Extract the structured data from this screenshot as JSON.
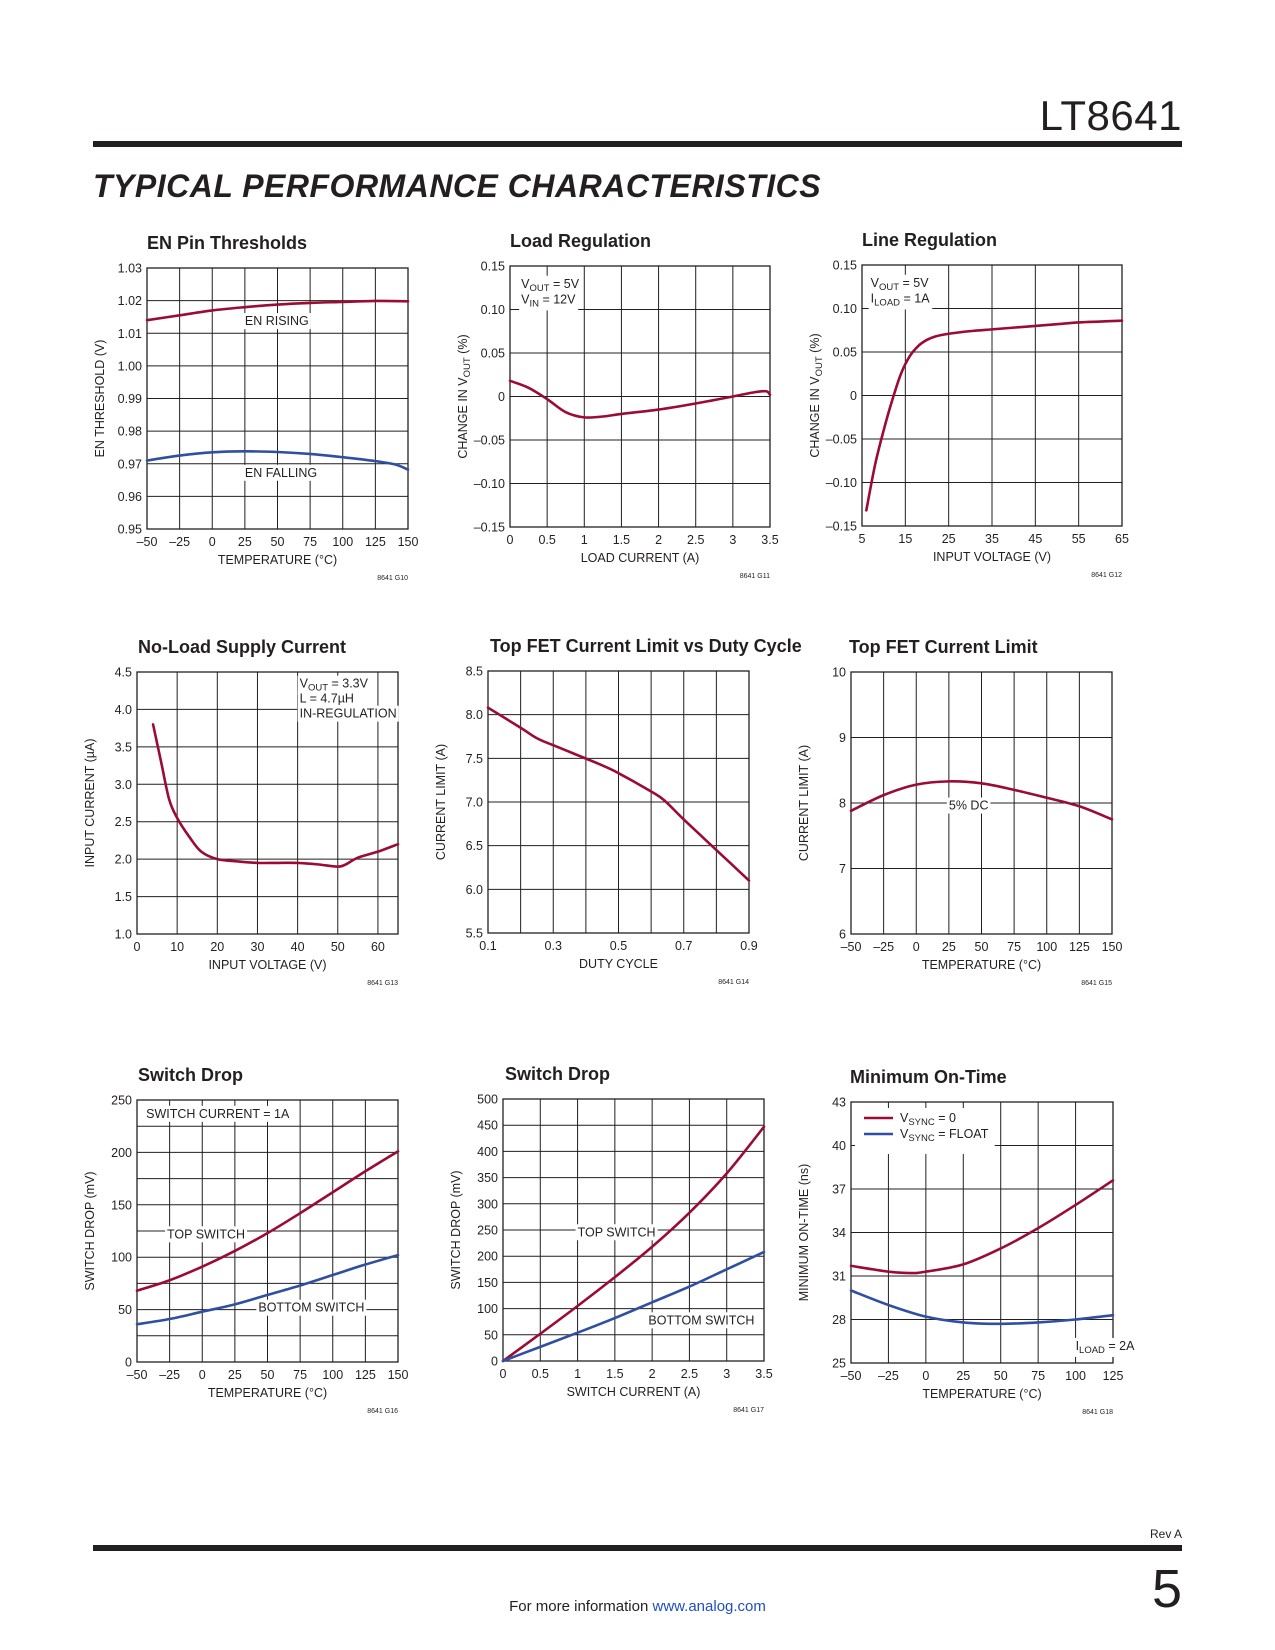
{
  "header": {
    "part_number": "LT8641",
    "section_title": "TYPICAL PERFORMANCE CHARACTERISTICS"
  },
  "colors": {
    "red": "#9b0c35",
    "blue": "#2f4fa2",
    "grid": "#231f20"
  },
  "chart_data": [
    {
      "type": "line",
      "title": "EN Pin Thresholds",
      "xlabel": "TEMPERATURE (°C)",
      "ylabel": "EN THRESHOLD (V)",
      "xlim": [
        -50,
        150
      ],
      "ylim": [
        0.95,
        1.03
      ],
      "xticks": [
        -50,
        -25,
        0,
        25,
        50,
        75,
        100,
        125,
        150
      ],
      "xtick_labels": [
        "–50",
        "–25",
        "0",
        "25",
        "50",
        "75",
        "100",
        "125",
        "150"
      ],
      "yticks": [
        0.95,
        0.96,
        0.97,
        0.98,
        0.99,
        1.0,
        1.01,
        1.02,
        1.03
      ],
      "ytick_labels": [
        "0.95",
        "0.96",
        "0.97",
        "0.98",
        "0.99",
        "1.00",
        "1.01",
        "1.02",
        "1.03"
      ],
      "grid": true,
      "code": "8641 G10",
      "series": [
        {
          "color": "red",
          "x": [
            -50,
            -25,
            0,
            25,
            50,
            75,
            100,
            125,
            150
          ],
          "y": [
            1.014,
            1.0155,
            1.017,
            1.018,
            1.0188,
            1.0193,
            1.0196,
            1.0199,
            1.0198
          ]
        },
        {
          "color": "blue",
          "x": [
            -50,
            -25,
            0,
            25,
            50,
            75,
            100,
            125,
            140,
            150
          ],
          "y": [
            0.971,
            0.9725,
            0.9735,
            0.9738,
            0.9736,
            0.973,
            0.972,
            0.9708,
            0.9698,
            0.9682
          ]
        }
      ],
      "annotations": [
        {
          "text": "EN RISING",
          "x": 25,
          "y": 1.0125
        },
        {
          "text": "EN FALLING",
          "x": 25,
          "y": 0.966
        }
      ]
    },
    {
      "type": "line",
      "title": "Load Regulation",
      "xlabel": "LOAD CURRENT (A)",
      "ylabel": "CHANGE IN VOUT (%)",
      "xlim": [
        0,
        3.5
      ],
      "ylim": [
        -0.15,
        0.15
      ],
      "xticks": [
        0,
        0.5,
        1,
        1.5,
        2,
        2.5,
        3,
        3.5
      ],
      "xtick_labels": [
        "0",
        "0.5",
        "1",
        "1.5",
        "2",
        "2.5",
        "3",
        "3.5"
      ],
      "yticks": [
        -0.15,
        -0.1,
        -0.05,
        0,
        0.05,
        0.1,
        0.15
      ],
      "ytick_labels": [
        "–0.15",
        "–0.10",
        "–0.05",
        "0",
        "0.05",
        "0.10",
        "0.15"
      ],
      "grid": true,
      "code": "8641 G11",
      "series": [
        {
          "color": "red",
          "x": [
            0,
            0.25,
            0.5,
            0.75,
            1.0,
            1.25,
            1.5,
            2.0,
            2.5,
            3.0,
            3.3,
            3.45,
            3.5
          ],
          "y": [
            0.018,
            0.01,
            -0.003,
            -0.018,
            -0.024,
            -0.023,
            -0.02,
            -0.015,
            -0.008,
            0.0,
            0.005,
            0.006,
            0.002
          ]
        }
      ],
      "annotations": [
        {
          "text": "VOUT = 5V",
          "x": 0.15,
          "y": 0.125
        },
        {
          "text": "VIN = 12V",
          "x": 0.15,
          "y": 0.107
        }
      ]
    },
    {
      "type": "line",
      "title": "Line Regulation",
      "xlabel": "INPUT VOLTAGE (V)",
      "ylabel": "CHANGE IN VOUT (%)",
      "xlim": [
        5,
        65
      ],
      "ylim": [
        -0.15,
        0.15
      ],
      "xticks": [
        5,
        15,
        25,
        35,
        45,
        55,
        65
      ],
      "xtick_labels": [
        "5",
        "15",
        "25",
        "35",
        "45",
        "55",
        "65"
      ],
      "yticks": [
        -0.15,
        -0.1,
        -0.05,
        0,
        0.05,
        0.1,
        0.15
      ],
      "ytick_labels": [
        "–0.15",
        "–0.10",
        "–0.05",
        "0",
        "0.05",
        "0.10",
        "0.15"
      ],
      "grid": true,
      "code": "8641 G12",
      "series": [
        {
          "color": "red",
          "x": [
            6,
            8,
            10,
            12,
            14,
            16,
            18,
            20,
            22,
            25,
            30,
            35,
            40,
            45,
            50,
            55,
            60,
            65
          ],
          "y": [
            -0.132,
            -0.08,
            -0.04,
            -0.005,
            0.025,
            0.045,
            0.057,
            0.064,
            0.068,
            0.071,
            0.074,
            0.076,
            0.078,
            0.08,
            0.082,
            0.084,
            0.085,
            0.086
          ]
        }
      ],
      "annotations": [
        {
          "text": "VOUT = 5V",
          "x": 7,
          "y": 0.125
        },
        {
          "text": "ILOAD = 1A",
          "x": 7,
          "y": 0.107
        }
      ]
    },
    {
      "type": "line",
      "title": "No-Load Supply Current",
      "xlabel": "INPUT VOLTAGE (V)",
      "ylabel": "INPUT CURRENT (µA)",
      "xlim": [
        0,
        65
      ],
      "ylim": [
        1.0,
        4.5
      ],
      "xticks": [
        0,
        10,
        20,
        30,
        40,
        50,
        60
      ],
      "xtick_labels": [
        "0",
        "10",
        "20",
        "30",
        "40",
        "50",
        "60"
      ],
      "yticks": [
        1.0,
        1.5,
        2.0,
        2.5,
        3.0,
        3.5,
        4.0,
        4.5
      ],
      "ytick_labels": [
        "1.0",
        "1.5",
        "2.0",
        "2.5",
        "3.0",
        "3.5",
        "4.0",
        "4.5"
      ],
      "grid": true,
      "code": "8641 G13",
      "series": [
        {
          "color": "red",
          "x": [
            4,
            6,
            8,
            10,
            13,
            16,
            20,
            25,
            30,
            35,
            40,
            45,
            50,
            52,
            55,
            60,
            65
          ],
          "y": [
            3.8,
            3.3,
            2.8,
            2.55,
            2.3,
            2.1,
            2.0,
            1.97,
            1.95,
            1.95,
            1.95,
            1.93,
            1.9,
            1.93,
            2.02,
            2.1,
            2.2
          ]
        }
      ],
      "annotations": [
        {
          "text": "VOUT = 3.3V",
          "x": 40.5,
          "y": 4.29
        },
        {
          "text": "L = 4.7µH",
          "x": 40.5,
          "y": 4.09
        },
        {
          "text": "IN-REGULATION",
          "x": 40.5,
          "y": 3.89
        }
      ]
    },
    {
      "type": "line",
      "title": "Top FET Current Limit vs Duty Cycle",
      "xlabel": "DUTY CYCLE",
      "ylabel": "CURRENT LIMIT (A)",
      "xlim": [
        0.1,
        0.9
      ],
      "ylim": [
        5.5,
        8.5
      ],
      "xticks": [
        0.1,
        0.3,
        0.5,
        0.7,
        0.9
      ],
      "xminor": [
        0.2,
        0.4,
        0.6,
        0.8
      ],
      "xtick_labels": [
        "0.1",
        "0.3",
        "0.5",
        "0.7",
        "0.9"
      ],
      "yticks": [
        5.5,
        6.0,
        6.5,
        7.0,
        7.5,
        8.0,
        8.5
      ],
      "ytick_labels": [
        "5.5",
        "6.0",
        "6.5",
        "7.0",
        "7.5",
        "8.0",
        "8.5"
      ],
      "grid": true,
      "code": "8641 G14",
      "series": [
        {
          "color": "red",
          "x": [
            0.1,
            0.2,
            0.25,
            0.3,
            0.45,
            0.5,
            0.6,
            0.64,
            0.7,
            0.8,
            0.9
          ],
          "y": [
            8.08,
            7.85,
            7.73,
            7.65,
            7.42,
            7.33,
            7.12,
            7.02,
            6.8,
            6.45,
            6.1
          ]
        }
      ],
      "annotations": []
    },
    {
      "type": "line",
      "title": "Top FET Current Limit",
      "xlabel": "TEMPERATURE (°C)",
      "ylabel": "CURRENT LIMIT (A)",
      "xlim": [
        -50,
        150
      ],
      "ylim": [
        6,
        10
      ],
      "xticks": [
        -50,
        -25,
        0,
        25,
        50,
        75,
        100,
        125,
        150
      ],
      "xtick_labels": [
        "–50",
        "–25",
        "0",
        "25",
        "50",
        "75",
        "100",
        "125",
        "150"
      ],
      "yticks": [
        6,
        7,
        8,
        9,
        10
      ],
      "ytick_labels": [
        "6",
        "7",
        "8",
        "9",
        "10"
      ],
      "grid": true,
      "code": "8641 G15",
      "series": [
        {
          "color": "red",
          "x": [
            -50,
            -25,
            0,
            25,
            50,
            75,
            100,
            125,
            150
          ],
          "y": [
            7.88,
            8.12,
            8.28,
            8.33,
            8.3,
            8.2,
            8.08,
            7.95,
            7.75
          ]
        }
      ],
      "annotations": [
        {
          "text": "5% DC",
          "x": 25,
          "y": 7.9
        }
      ]
    },
    {
      "type": "line",
      "title": "Switch Drop",
      "xlabel": "TEMPERATURE (°C)",
      "ylabel": "SWITCH DROP (mV)",
      "xlim": [
        -50,
        150
      ],
      "ylim": [
        0,
        250
      ],
      "xticks": [
        -50,
        -25,
        0,
        25,
        50,
        75,
        100,
        125,
        150
      ],
      "xtick_labels": [
        "–50",
        "–25",
        "0",
        "25",
        "50",
        "75",
        "100",
        "125",
        "150"
      ],
      "yticks": [
        0,
        50,
        100,
        150,
        200,
        250
      ],
      "yminor": [
        25,
        75,
        125,
        175,
        225
      ],
      "ytick_labels": [
        "0",
        "50",
        "100",
        "150",
        "200",
        "250"
      ],
      "grid": true,
      "code": "8641 G16",
      "series": [
        {
          "color": "red",
          "x": [
            -50,
            -25,
            0,
            25,
            50,
            75,
            100,
            125,
            150
          ],
          "y": [
            68,
            78,
            91,
            106,
            123,
            142,
            162,
            182,
            201
          ]
        },
        {
          "color": "blue",
          "x": [
            -50,
            -25,
            0,
            25,
            50,
            75,
            100,
            125,
            150
          ],
          "y": [
            36,
            41,
            48,
            55,
            64,
            73,
            83,
            93,
            102
          ]
        }
      ],
      "annotations": [
        {
          "text": "SWITCH CURRENT = 1A",
          "x": -43,
          "y": 233
        },
        {
          "text": "TOP SWITCH",
          "x": -27,
          "y": 118
        },
        {
          "text": "BOTTOM SWITCH",
          "x": 43,
          "y": 48
        }
      ]
    },
    {
      "type": "line",
      "title": "Switch Drop",
      "xlabel": "SWITCH CURRENT (A)",
      "ylabel": "SWITCH DROP (mV)",
      "xlim": [
        0,
        3.5
      ],
      "ylim": [
        0,
        500
      ],
      "xticks": [
        0,
        0.5,
        1,
        1.5,
        2,
        2.5,
        3,
        3.5
      ],
      "xtick_labels": [
        "0",
        "0.5",
        "1",
        "1.5",
        "2",
        "2.5",
        "3",
        "3.5"
      ],
      "yticks": [
        0,
        50,
        100,
        150,
        200,
        250,
        300,
        350,
        400,
        450,
        500
      ],
      "ytick_labels": [
        "0",
        "50",
        "100",
        "150",
        "200",
        "250",
        "300",
        "350",
        "400",
        "450",
        "500"
      ],
      "grid": true,
      "code": "8641 G17",
      "series": [
        {
          "color": "red",
          "x": [
            0,
            0.5,
            1,
            1.5,
            2,
            2.5,
            3,
            3.5
          ],
          "y": [
            0,
            52,
            105,
            160,
            218,
            283,
            358,
            447
          ]
        },
        {
          "color": "blue",
          "x": [
            0,
            0.5,
            1,
            1.5,
            2,
            2.5,
            3,
            3.5
          ],
          "y": [
            0,
            27,
            54,
            82,
            112,
            142,
            175,
            208
          ]
        }
      ],
      "annotations": [
        {
          "text": "TOP SWITCH",
          "x": 1.0,
          "y": 238
        },
        {
          "text": "BOTTOM SWITCH",
          "x": 1.95,
          "y": 70
        }
      ]
    },
    {
      "type": "line",
      "title": "Minimum On-Time",
      "xlabel": "TEMPERATURE (°C)",
      "ylabel": "MINIMUM ON-TIME (ns)",
      "xlim": [
        -50,
        125
      ],
      "ylim": [
        25,
        43
      ],
      "xticks": [
        -50,
        -25,
        0,
        25,
        50,
        75,
        100,
        125
      ],
      "xtick_labels": [
        "–50",
        "–25",
        "0",
        "25",
        "50",
        "75",
        "100",
        "125"
      ],
      "yticks": [
        25,
        28,
        31,
        34,
        37,
        40,
        43
      ],
      "ytick_labels": [
        "25",
        "28",
        "31",
        "34",
        "37",
        "40",
        "43"
      ],
      "grid": true,
      "code": "8641 G18",
      "series": [
        {
          "name": "VSYNC = 0",
          "color": "red",
          "x": [
            -50,
            -25,
            -10,
            0,
            25,
            50,
            75,
            100,
            125
          ],
          "y": [
            31.7,
            31.3,
            31.2,
            31.3,
            31.8,
            32.9,
            34.3,
            35.9,
            37.6
          ]
        },
        {
          "name": "VSYNC = FLOAT",
          "color": "blue",
          "x": [
            -50,
            -25,
            0,
            25,
            50,
            75,
            100,
            125
          ],
          "y": [
            30.0,
            29.0,
            28.2,
            27.8,
            27.7,
            27.8,
            28.0,
            28.3
          ]
        }
      ],
      "annotations": [
        {
          "text": "ILOAD = 2A",
          "x": 100,
          "y": 25.9
        }
      ],
      "legend": "top-left"
    }
  ],
  "footer": {
    "rev": "Rev A",
    "info_text": "For more information ",
    "link_text": "www.analog.com",
    "page_number": "5"
  }
}
